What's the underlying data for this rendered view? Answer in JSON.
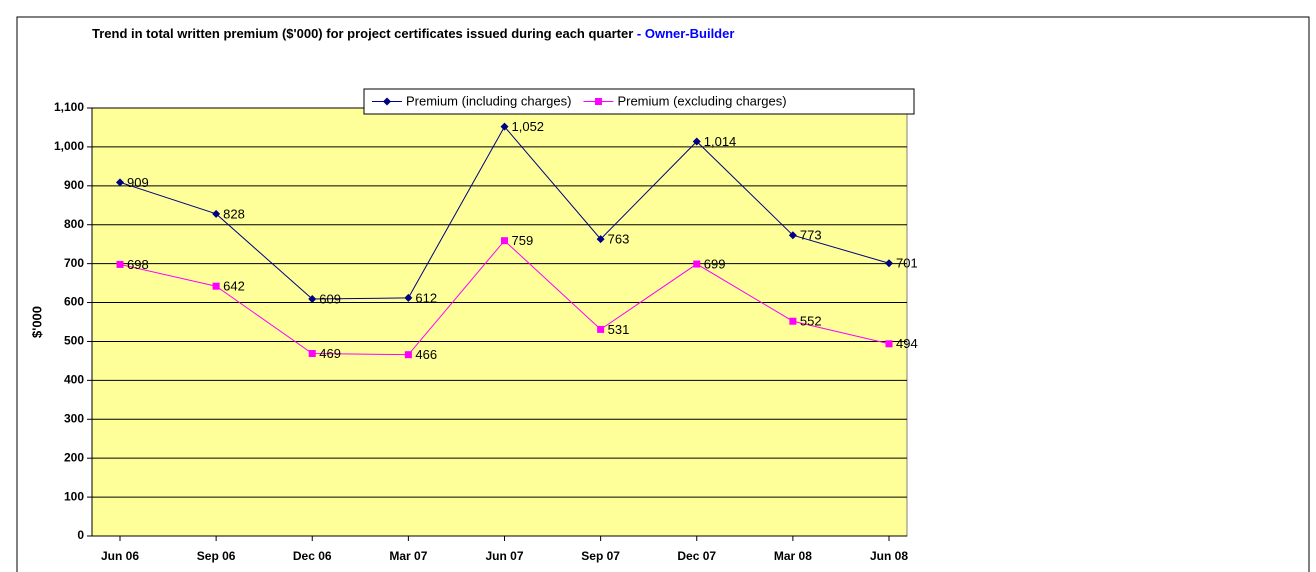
{
  "chart_data": {
    "type": "line",
    "title": "Trend in total written premium ($'000) for project certificates issued during each quarter",
    "subtitle": "- Owner-Builder",
    "y_label": "$'000",
    "categories": [
      "Jun 06",
      "Sep 06",
      "Dec 06",
      "Mar 07",
      "Jun 07",
      "Sep 07",
      "Dec 07",
      "Mar 08",
      "Jun 08"
    ],
    "series": [
      {
        "name": "Premium (including charges)",
        "color": "#000080",
        "marker": "diamond",
        "values": [
          909,
          828,
          609,
          612,
          1052,
          763,
          1014,
          773,
          701
        ],
        "value_labels": [
          "909",
          "828",
          "609",
          "612",
          "1,052",
          "763",
          "1,014",
          "773",
          "701"
        ]
      },
      {
        "name": "Premium (excluding charges)",
        "color": "#ff00ff",
        "marker": "square",
        "values": [
          698,
          642,
          469,
          466,
          759,
          531,
          699,
          552,
          494
        ],
        "value_labels": [
          "698",
          "642",
          "469",
          "466",
          "759",
          "531",
          "699",
          "552",
          "494"
        ]
      }
    ],
    "ylim": [
      0,
      1100
    ],
    "yticks": [
      0,
      100,
      200,
      300,
      400,
      500,
      600,
      700,
      800,
      900,
      {
        "value": 1000,
        "label": "1,000"
      },
      {
        "value": 1100,
        "label": "1,100"
      }
    ],
    "grid": true,
    "legend": "top",
    "plot_background": "#ffff99"
  }
}
